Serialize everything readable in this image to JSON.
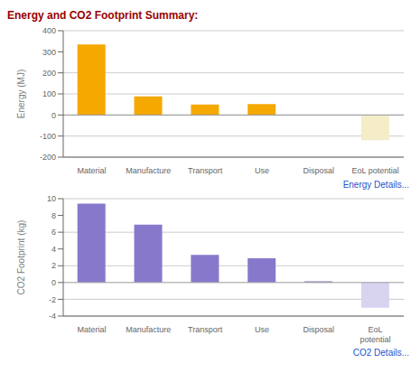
{
  "chart_data": [
    {
      "type": "bar",
      "title": "Energy and CO2 Footprint Summary:",
      "categories": [
        "Material",
        "Manufacture",
        "Transport",
        "Use",
        "Disposal",
        "EoL potential"
      ],
      "values": [
        335,
        88,
        50,
        52,
        1,
        -120
      ],
      "colors": [
        "#f5a800",
        "#f5a800",
        "#f5a800",
        "#f5a800",
        "#f5a800",
        "#f5ecc8"
      ],
      "y_label": "Energy (MJ)",
      "ylim": [
        -200,
        400
      ],
      "yticks": [
        -200,
        -100,
        0,
        100,
        200,
        300,
        400
      ],
      "grid": true,
      "annotations": [
        "Energy Details..."
      ]
    },
    {
      "type": "bar",
      "categories": [
        "Material",
        "Manufacture",
        "Transport",
        "Use",
        "Disposal",
        "EoL\npotential"
      ],
      "values": [
        9.4,
        6.9,
        3.3,
        2.9,
        0.15,
        -3.0
      ],
      "colors": [
        "#8878cc",
        "#8878cc",
        "#8878cc",
        "#8878cc",
        "#8878cc",
        "#d8d4f0"
      ],
      "y_label": "CO2 Footprint (kg)",
      "ylim": [
        -4,
        10
      ],
      "yticks": [
        -4,
        -2,
        0,
        2,
        4,
        6,
        8,
        10
      ],
      "grid": true,
      "annotations": [
        "CO2 Details..."
      ]
    }
  ]
}
